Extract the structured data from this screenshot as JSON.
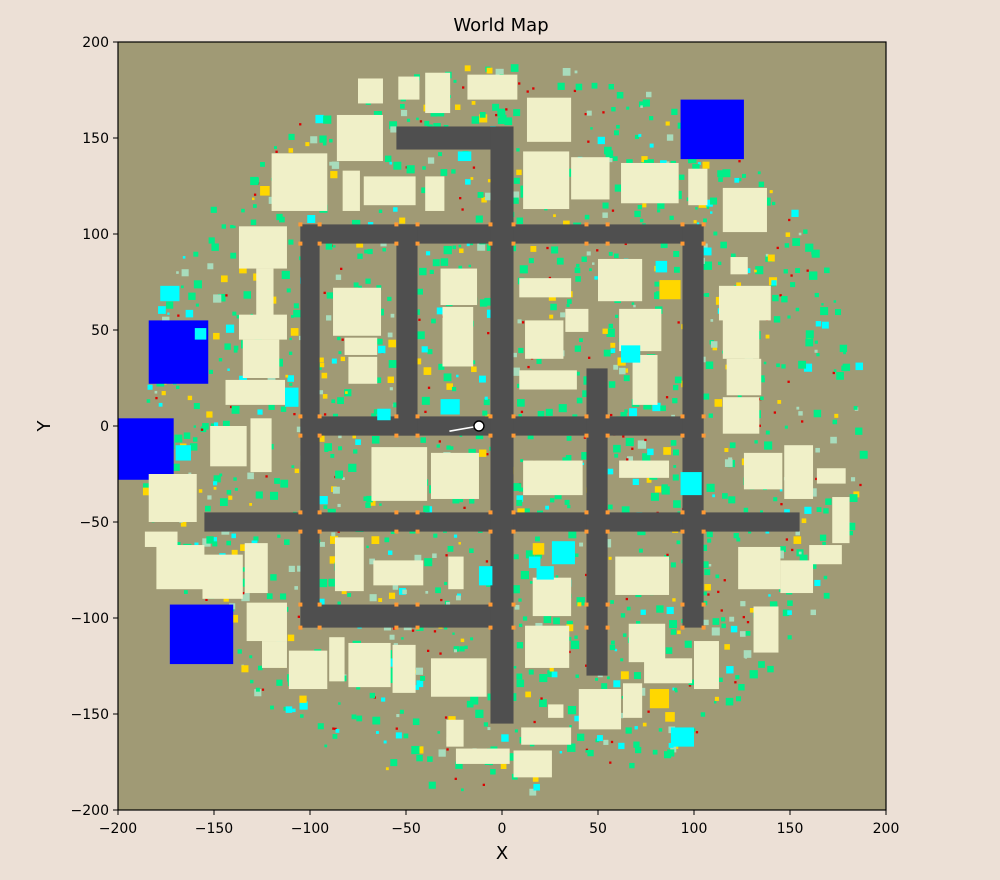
{
  "chart_data": {
    "type": "map",
    "title": "World Map",
    "xlabel": "X",
    "ylabel": "Y",
    "xlim": [
      -200,
      200
    ],
    "ylim": [
      -200,
      200
    ],
    "xticks": [
      -200,
      -150,
      -100,
      -50,
      0,
      50,
      100,
      150,
      200
    ],
    "yticks": [
      -200,
      -150,
      -100,
      -50,
      0,
      50,
      100,
      150,
      200
    ],
    "grid": false,
    "colors": {
      "ground": "#a09a75",
      "road": "#4f4f4f",
      "building": "#f0f0c8",
      "water": "#0000ff",
      "vegetation": "#00ee88",
      "cyan_patch": "#00ffff",
      "yellow_marker": "#ffd700",
      "orange_marker": "#ff9933",
      "red_marker": "#dd0000",
      "pale_green": "#a8dcbc",
      "figure_background": "#ece0d6"
    },
    "roads": [
      {
        "x": [
          -105,
          105
        ],
        "y": [
          95,
          105
        ]
      },
      {
        "x": [
          -105,
          105
        ],
        "y": [
          -5,
          5
        ]
      },
      {
        "x": [
          -155,
          155
        ],
        "y": [
          -55,
          -45
        ]
      },
      {
        "x": [
          -105,
          -5
        ],
        "y": [
          -105,
          -93
        ]
      },
      {
        "x": [
          -55,
          5
        ],
        "y": [
          144,
          156
        ]
      },
      {
        "x": [
          -105,
          -95
        ],
        "y": [
          -105,
          105
        ]
      },
      {
        "x": [
          -55,
          -44
        ],
        "y": [
          -5,
          105
        ]
      },
      {
        "x": [
          -6,
          6
        ],
        "y": [
          -155,
          156
        ]
      },
      {
        "x": [
          44,
          55
        ],
        "y": [
          -130,
          30
        ]
      },
      {
        "x": [
          94,
          105
        ],
        "y": [
          -105,
          105
        ]
      }
    ],
    "water_bodies": [
      {
        "x": [
          -184,
          -153
        ],
        "y": [
          22,
          55
        ]
      },
      {
        "x": [
          -200,
          -171
        ],
        "y": [
          -28,
          4
        ]
      },
      {
        "x": [
          -173,
          -140
        ],
        "y": [
          -124,
          -93
        ]
      },
      {
        "x": [
          93,
          126
        ],
        "y": [
          139,
          170
        ]
      }
    ],
    "buildings": [
      {
        "x": [
          -75,
          -62
        ],
        "y": [
          168,
          181
        ]
      },
      {
        "x": [
          -54,
          -43
        ],
        "y": [
          170,
          182
        ]
      },
      {
        "x": [
          -40,
          -27
        ],
        "y": [
          163,
          184
        ]
      },
      {
        "x": [
          -18,
          8
        ],
        "y": [
          170,
          183
        ]
      },
      {
        "x": [
          13,
          36
        ],
        "y": [
          148,
          171
        ]
      },
      {
        "x": [
          -86,
          -62
        ],
        "y": [
          138,
          162
        ]
      },
      {
        "x": [
          -83,
          -74
        ],
        "y": [
          112,
          133
        ]
      },
      {
        "x": [
          -72,
          -45
        ],
        "y": [
          115,
          130
        ]
      },
      {
        "x": [
          -40,
          -30
        ],
        "y": [
          112,
          130
        ]
      },
      {
        "x": [
          -120,
          -91
        ],
        "y": [
          112,
          142
        ]
      },
      {
        "x": [
          11,
          35
        ],
        "y": [
          113,
          143
        ]
      },
      {
        "x": [
          36,
          56
        ],
        "y": [
          118,
          140
        ]
      },
      {
        "x": [
          62,
          92
        ],
        "y": [
          116,
          137
        ]
      },
      {
        "x": [
          97,
          107
        ],
        "y": [
          115,
          134
        ]
      },
      {
        "x": [
          115,
          138
        ],
        "y": [
          101,
          124
        ]
      },
      {
        "x": [
          -137,
          -112
        ],
        "y": [
          82,
          104
        ]
      },
      {
        "x": [
          -128,
          -119
        ],
        "y": [
          55,
          82
        ]
      },
      {
        "x": [
          -137,
          -112
        ],
        "y": [
          45,
          58
        ]
      },
      {
        "x": [
          -135,
          -116
        ],
        "y": [
          25,
          45
        ]
      },
      {
        "x": [
          -144,
          -113
        ],
        "y": [
          11,
          24
        ]
      },
      {
        "x": [
          -88,
          -63
        ],
        "y": [
          47,
          72
        ]
      },
      {
        "x": [
          -82,
          -65
        ],
        "y": [
          37,
          46
        ]
      },
      {
        "x": [
          -80,
          -65
        ],
        "y": [
          22,
          36
        ]
      },
      {
        "x": [
          -32,
          -13
        ],
        "y": [
          63,
          82
        ]
      },
      {
        "x": [
          -31,
          -15
        ],
        "y": [
          31,
          62
        ]
      },
      {
        "x": [
          9,
          36
        ],
        "y": [
          67,
          77
        ]
      },
      {
        "x": [
          50,
          73
        ],
        "y": [
          65,
          87
        ]
      },
      {
        "x": [
          12,
          32
        ],
        "y": [
          35,
          55
        ]
      },
      {
        "x": [
          33,
          45
        ],
        "y": [
          49,
          61
        ]
      },
      {
        "x": [
          61,
          83
        ],
        "y": [
          39,
          61
        ]
      },
      {
        "x": [
          9,
          39
        ],
        "y": [
          19,
          29
        ]
      },
      {
        "x": [
          68,
          81
        ],
        "y": [
          11,
          37
        ]
      },
      {
        "x": [
          113,
          140
        ],
        "y": [
          55,
          73
        ]
      },
      {
        "x": [
          119,
          128
        ],
        "y": [
          79,
          88
        ]
      },
      {
        "x": [
          115,
          134
        ],
        "y": [
          35,
          56
        ]
      },
      {
        "x": [
          117,
          135
        ],
        "y": [
          16,
          35
        ]
      },
      {
        "x": [
          115,
          134
        ],
        "y": [
          -4,
          15
        ]
      },
      {
        "x": [
          -131,
          -120
        ],
        "y": [
          -24,
          4
        ]
      },
      {
        "x": [
          -152,
          -133
        ],
        "y": [
          -21,
          0
        ]
      },
      {
        "x": [
          -68,
          -39
        ],
        "y": [
          -39,
          -11
        ]
      },
      {
        "x": [
          -37,
          -12
        ],
        "y": [
          -38,
          -14
        ]
      },
      {
        "x": [
          11,
          42
        ],
        "y": [
          -36,
          -18
        ]
      },
      {
        "x": [
          61,
          87
        ],
        "y": [
          -27,
          -18
        ]
      },
      {
        "x": [
          126,
          146
        ],
        "y": [
          -33,
          -14
        ]
      },
      {
        "x": [
          147,
          162
        ],
        "y": [
          -38,
          -10
        ]
      },
      {
        "x": [
          164,
          179
        ],
        "y": [
          -30,
          -22
        ]
      },
      {
        "x": [
          -184,
          -159
        ],
        "y": [
          -50,
          -25
        ]
      },
      {
        "x": [
          -186,
          -169
        ],
        "y": [
          -63,
          -55
        ]
      },
      {
        "x": [
          -180,
          -155
        ],
        "y": [
          -85,
          -62
        ]
      },
      {
        "x": [
          -156,
          -135
        ],
        "y": [
          -90,
          -67
        ]
      },
      {
        "x": [
          -134,
          -122
        ],
        "y": [
          -87,
          -61
        ]
      },
      {
        "x": [
          -133,
          -112
        ],
        "y": [
          -112,
          -92
        ]
      },
      {
        "x": [
          -125,
          -112
        ],
        "y": [
          -126,
          -112
        ]
      },
      {
        "x": [
          -111,
          -91
        ],
        "y": [
          -137,
          -117
        ]
      },
      {
        "x": [
          -90,
          -82
        ],
        "y": [
          -133,
          -110
        ]
      },
      {
        "x": [
          -80,
          -58
        ],
        "y": [
          -136,
          -113
        ]
      },
      {
        "x": [
          -57,
          -45
        ],
        "y": [
          -139,
          -114
        ]
      },
      {
        "x": [
          -37,
          -8
        ],
        "y": [
          -141,
          -121
        ]
      },
      {
        "x": [
          -87,
          -72
        ],
        "y": [
          -86,
          -58
        ]
      },
      {
        "x": [
          -67,
          -41
        ],
        "y": [
          -83,
          -70
        ]
      },
      {
        "x": [
          -28,
          -20
        ],
        "y": [
          -85,
          -68
        ]
      },
      {
        "x": [
          16,
          36
        ],
        "y": [
          -99,
          -79
        ]
      },
      {
        "x": [
          59,
          87
        ],
        "y": [
          -88,
          -68
        ]
      },
      {
        "x": [
          12,
          35
        ],
        "y": [
          -126,
          -104
        ]
      },
      {
        "x": [
          66,
          85
        ],
        "y": [
          -123,
          -103
        ]
      },
      {
        "x": [
          74,
          99
        ],
        "y": [
          -134,
          -121
        ]
      },
      {
        "x": [
          100,
          113
        ],
        "y": [
          -137,
          -112
        ]
      },
      {
        "x": [
          123,
          145
        ],
        "y": [
          -85,
          -63
        ]
      },
      {
        "x": [
          145,
          162
        ],
        "y": [
          -87,
          -70
        ]
      },
      {
        "x": [
          160,
          177
        ],
        "y": [
          -72,
          -62
        ]
      },
      {
        "x": [
          172,
          181
        ],
        "y": [
          -61,
          -37
        ]
      },
      {
        "x": [
          131,
          144
        ],
        "y": [
          -118,
          -94
        ]
      },
      {
        "x": [
          40,
          62
        ],
        "y": [
          -158,
          -137
        ]
      },
      {
        "x": [
          63,
          73
        ],
        "y": [
          -152,
          -134
        ]
      },
      {
        "x": [
          24,
          32
        ],
        "y": [
          -152,
          -145
        ]
      },
      {
        "x": [
          10,
          36
        ],
        "y": [
          -166,
          -157
        ]
      },
      {
        "x": [
          -29,
          -20
        ],
        "y": [
          -167,
          -153
        ]
      },
      {
        "x": [
          -24,
          4
        ],
        "y": [
          -176,
          -168
        ]
      },
      {
        "x": [
          6,
          26
        ],
        "y": [
          -183,
          -169
        ]
      }
    ],
    "cyan_patches": [
      {
        "x": [
          -170,
          -162
        ],
        "y": [
          -18,
          -10
        ]
      },
      {
        "x": [
          -113,
          -106
        ],
        "y": [
          10,
          20
        ]
      },
      {
        "x": [
          -178,
          -168
        ],
        "y": [
          65,
          73
        ]
      },
      {
        "x": [
          -160,
          -154
        ],
        "y": [
          45,
          51
        ]
      },
      {
        "x": [
          -32,
          -22
        ],
        "y": [
          6,
          14
        ]
      },
      {
        "x": [
          -65,
          -58
        ],
        "y": [
          3,
          9
        ]
      },
      {
        "x": [
          -12,
          -5
        ],
        "y": [
          -83,
          -73
        ]
      },
      {
        "x": [
          14,
          20
        ],
        "y": [
          -74,
          -68
        ]
      },
      {
        "x": [
          18,
          27
        ],
        "y": [
          -80,
          -73
        ]
      },
      {
        "x": [
          26,
          38
        ],
        "y": [
          -72,
          -60
        ]
      },
      {
        "x": [
          93,
          104
        ],
        "y": [
          -36,
          -24
        ]
      },
      {
        "x": [
          88,
          100
        ],
        "y": [
          -167,
          -157
        ]
      },
      {
        "x": [
          62,
          72
        ],
        "y": [
          33,
          42
        ]
      },
      {
        "x": [
          80,
          86
        ],
        "y": [
          80,
          86
        ]
      },
      {
        "x": [
          -23,
          -16
        ],
        "y": [
          138,
          143
        ]
      }
    ],
    "yellow_markers": [
      {
        "x": [
          -126,
          -121
        ],
        "y": [
          120,
          125
        ]
      },
      {
        "x": [
          82,
          93
        ],
        "y": [
          66,
          76
        ]
      },
      {
        "x": [
          77,
          87
        ],
        "y": [
          -147,
          -137
        ]
      },
      {
        "x": [
          85,
          90
        ],
        "y": [
          -154,
          -149
        ]
      },
      {
        "x": [
          16,
          22
        ],
        "y": [
          -67,
          -61
        ]
      },
      {
        "x": [
          84,
          88
        ],
        "y": [
          -15,
          -11
        ]
      },
      {
        "x": [
          -110,
          -106
        ],
        "y": [
          47,
          51
        ]
      }
    ],
    "agent": {
      "x": -12,
      "y": 0,
      "heading_deg": 190
    }
  }
}
